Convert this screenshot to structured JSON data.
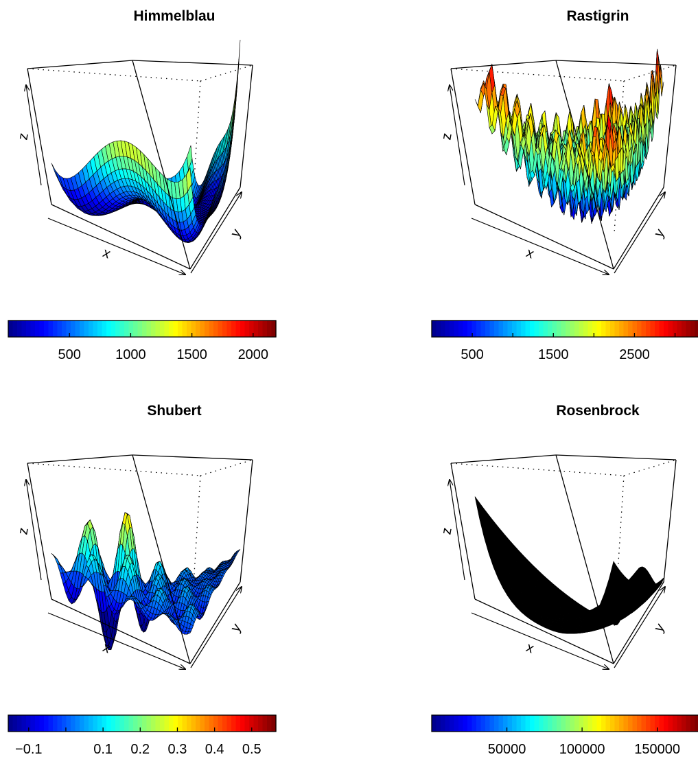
{
  "panels": [
    {
      "title": "Himmelblau",
      "xlabel": "x",
      "ylabel": "y",
      "zlabel": "z",
      "colorbar": {
        "min": 0,
        "max": 2186,
        "ticks": [
          500,
          1000,
          1500,
          2000
        ],
        "tick_labels": [
          "500",
          "1000",
          "1500",
          "2000"
        ]
      }
    },
    {
      "title": "Rastigrin",
      "xlabel": "x",
      "ylabel": "y",
      "zlabel": "z",
      "colorbar": {
        "min": 0,
        "max": 3300,
        "ticks": [
          500,
          1000,
          1500,
          2000,
          2500,
          3000
        ],
        "tick_labels": [
          "500",
          "",
          "1500",
          "",
          "2500",
          ""
        ]
      }
    },
    {
      "title": "Shubert",
      "xlabel": "x",
      "ylabel": "y",
      "zlabel": "z",
      "colorbar": {
        "min": -0.155,
        "max": 0.565,
        "ticks": [
          -0.1,
          0.0,
          0.1,
          0.2,
          0.3,
          0.4,
          0.5
        ],
        "tick_labels": [
          "−0.1",
          "",
          "0.1",
          "0.2",
          "0.3",
          "0.4",
          "0.5"
        ]
      }
    },
    {
      "title": "Rosenbrock",
      "xlabel": "x",
      "ylabel": "y",
      "zlabel": "z",
      "colorbar": {
        "min": 0,
        "max": 178000,
        "ticks": [
          50000,
          100000,
          150000
        ],
        "tick_labels": [
          "50000",
          "100000",
          "150000"
        ]
      }
    }
  ],
  "colormap": [
    "#00008f",
    "#0000ff",
    "#0080ff",
    "#00ffff",
    "#80ff80",
    "#ffff00",
    "#ff8000",
    "#ff0000",
    "#800000"
  ],
  "chart_data": [
    {
      "type": "surface",
      "title": "Himmelblau",
      "xlabel": "x",
      "ylabel": "y",
      "zlabel": "z",
      "zlim": [
        0,
        2186
      ],
      "colorbar_ticks": [
        500,
        1000,
        1500,
        2000
      ]
    },
    {
      "type": "surface",
      "title": "Rastigrin",
      "xlabel": "x",
      "ylabel": "y",
      "zlabel": "z",
      "zlim": [
        0,
        3300
      ],
      "colorbar_ticks": [
        500,
        1000,
        1500,
        2000,
        2500,
        3000
      ]
    },
    {
      "type": "surface",
      "title": "Shubert",
      "xlabel": "x",
      "ylabel": "y",
      "zlabel": "z",
      "zlim": [
        -0.155,
        0.565
      ],
      "colorbar_ticks": [
        -0.1,
        0.0,
        0.1,
        0.2,
        0.3,
        0.4,
        0.5
      ]
    },
    {
      "type": "surface",
      "title": "Rosenbrock",
      "xlabel": "x",
      "ylabel": "y",
      "zlabel": "z",
      "zlim": [
        0,
        178000
      ],
      "colorbar_ticks": [
        50000,
        100000,
        150000
      ]
    }
  ]
}
